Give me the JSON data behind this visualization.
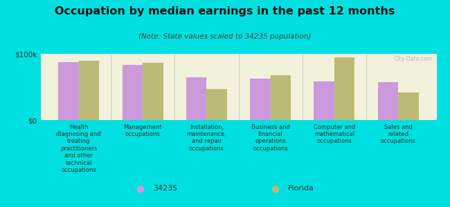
{
  "title": "Occupation by median earnings in the past 12 months",
  "subtitle": "(Note: State values scaled to 34235 population)",
  "background_color": "#00e0e0",
  "chart_bg_color": "#f2f2dc",
  "categories": [
    "Health\ndiagnosing and\ntreating\npractitioners\nand other\ntechnical\noccupations",
    "Management\noccupations",
    "Installation,\nmaintenance,\nand repair\noccupations",
    "Business and\nfinancial\noperations\noccupations",
    "Computer and\nmathematical\noccupations",
    "Sales and\nrelated\noccupations"
  ],
  "values_34235": [
    87000,
    83000,
    65000,
    62000,
    58000,
    57000
  ],
  "values_florida": [
    90000,
    86000,
    47000,
    68000,
    95000,
    42000
  ],
  "color_34235": "#cc99dd",
  "color_florida": "#bbbb77",
  "ylim": [
    0,
    100000
  ],
  "ytick_labels": [
    "$0",
    "$100k"
  ],
  "legend_label_34235": "34235",
  "legend_label_florida": "Florida",
  "watermark": "City-Data.com"
}
